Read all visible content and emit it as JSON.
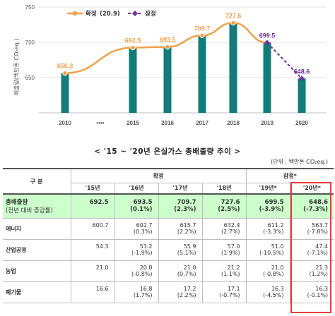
{
  "chart_data": {
    "type": "bar",
    "categories": [
      "2010",
      "••••",
      "2015",
      "2016",
      "2017",
      "2018",
      "2019",
      "2020"
    ],
    "values": [
      656.3,
      null,
      692.5,
      693.5,
      709.7,
      727.6,
      699.5,
      648.6
    ],
    "value_labels": [
      "656.3",
      "",
      "692.5",
      "693.5",
      "709.7",
      "727.6",
      "699.5",
      "648.6"
    ],
    "ylim": [
      600,
      750
    ],
    "yticks": [
      "650",
      "700",
      "750"
    ],
    "ylabel": "배출량(백만톤 CO₂eq.)",
    "legend": [
      {
        "label": "확정",
        "sub": "(20.9)",
        "color": "#f2a04a",
        "marker": "circle"
      },
      {
        "label": "잠정",
        "sub": "",
        "color": "#7030a0",
        "marker": "diamond"
      }
    ],
    "line_confirmed_color": "#f2a04a",
    "line_provisional_color": "#7030a0",
    "bar_color": "#127c7a"
  },
  "table": {
    "title": "< '15 ~ '20년 온실가스 총배출량 추이 >",
    "unit": "(단위 : 백만톤 CO₂eq.)",
    "header": {
      "category": "구 분",
      "confirmed": "확정",
      "provisional": "잠정*",
      "years": [
        "'15년",
        "'16년",
        "'17년",
        "'18년",
        "'19년*",
        "'20년*"
      ]
    },
    "rows": [
      {
        "label": "총배출량",
        "label2": "(전년 대비 증감률)",
        "values": [
          "692.5",
          "693.5",
          "709.7",
          "727.6",
          "699.5",
          "648.6"
        ],
        "changes": [
          "",
          "(0.1%)",
          "(2.3%)",
          "(2.5%)",
          "(-3.9%)",
          "(-7.3%)"
        ]
      },
      {
        "label": "에너지",
        "label2": "",
        "values": [
          "600.7",
          "602.7",
          "615.7",
          "632.4",
          "611.2",
          "563.7"
        ],
        "changes": [
          "",
          "(0.3%)",
          "(2.2%)",
          "(2.7%)",
          "(-3.3%)",
          "(-7.8%)"
        ]
      },
      {
        "label": "산업공정",
        "label2": "",
        "values": [
          "54.3",
          "53.2",
          "55.9",
          "57.0",
          "51.0",
          "47.4"
        ],
        "changes": [
          "",
          "(-1.9%)",
          "(5.1%)",
          "(1.9%)",
          "(-10.5%)",
          "(-7.1%)"
        ]
      },
      {
        "label": "농업",
        "label2": "",
        "values": [
          "21.0",
          "20.8",
          "21.0",
          "21.2",
          "21.0",
          "21.3"
        ],
        "changes": [
          "",
          "(-0.8%)",
          "(0.7%)",
          "(1.1%)",
          "(-0.8%)",
          "(1.2%)"
        ]
      },
      {
        "label": "폐기물",
        "label2": "",
        "values": [
          "16.6",
          "16.8",
          "17.2",
          "17.1",
          "16.3",
          "16.3"
        ],
        "changes": [
          "",
          "(1.7%)",
          "(2.2%)",
          "(-0.7%)",
          "(-4.5%)",
          "(-0.1%)"
        ]
      }
    ]
  }
}
